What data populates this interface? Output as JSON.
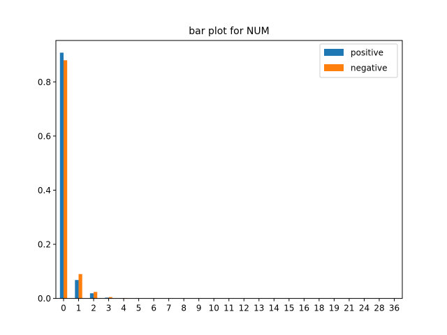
{
  "chart_data": {
    "type": "bar",
    "title": "bar plot for NUM",
    "xlabel": "",
    "ylabel": "",
    "categories": [
      "0",
      "1",
      "2",
      "3",
      "4",
      "5",
      "6",
      "7",
      "8",
      "9",
      "10",
      "11",
      "12",
      "13",
      "14",
      "15",
      "16",
      "18",
      "19",
      "21",
      "24",
      "28",
      "36"
    ],
    "series": [
      {
        "name": "positive",
        "color": "#1f77b4",
        "values": [
          0.908,
          0.068,
          0.019,
          0.003,
          0.0008,
          0.0005,
          0.0003,
          0.0002,
          0.0001,
          0.0001,
          0.0001,
          0.0001,
          0.0001,
          0.0001,
          0.0001,
          0.0001,
          0.0001,
          0.0001,
          0.0001,
          0.0001,
          0.0001,
          0.0001,
          0.0001
        ]
      },
      {
        "name": "negative",
        "color": "#ff7f0e",
        "values": [
          0.88,
          0.09,
          0.024,
          0.005,
          0.0012,
          0.0006,
          0.0004,
          0.0003,
          0.0002,
          0.0001,
          0.0001,
          0.0001,
          0.0001,
          0.0001,
          0.0001,
          0.0001,
          0.0001,
          0.0001,
          0.0001,
          0.0001,
          0.0001,
          0.0001,
          0.0001
        ]
      }
    ],
    "ylim": [
      0,
      0.953
    ],
    "yticks": [
      0.0,
      0.2,
      0.4,
      0.6,
      0.8
    ],
    "ytick_labels": [
      "0.0",
      "0.2",
      "0.4",
      "0.6",
      "0.8"
    ],
    "grid": false,
    "legend_position": "top-right"
  }
}
